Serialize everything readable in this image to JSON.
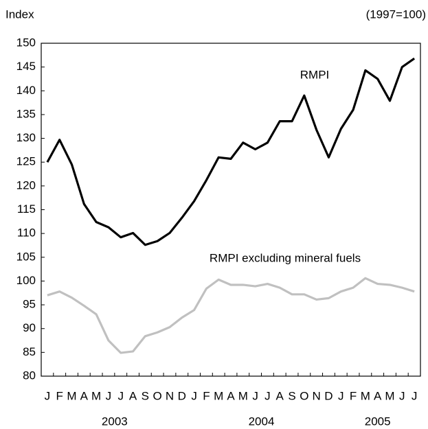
{
  "chart_data": {
    "type": "line",
    "y_label": "Index",
    "note": "(1997=100)",
    "groups": [
      {
        "label": "2003",
        "categories": [
          "J",
          "F",
          "M",
          "A",
          "M",
          "J",
          "J",
          "A",
          "S",
          "O",
          "N",
          "D"
        ]
      },
      {
        "label": "2004",
        "categories": [
          "J",
          "F",
          "M",
          "A",
          "M",
          "J",
          "J",
          "A",
          "S",
          "O",
          "N",
          "D"
        ]
      },
      {
        "label": "2005",
        "categories": [
          "J",
          "F",
          "M",
          "A",
          "M",
          "J",
          "J"
        ]
      }
    ],
    "series": [
      {
        "name": "RMPI",
        "color": "#000000",
        "values": [
          125.0,
          129.7,
          124.5,
          116.2,
          112.4,
          111.3,
          109.2,
          110.1,
          107.6,
          108.4,
          110.1,
          113.3,
          116.8,
          121.2,
          126.0,
          125.7,
          129.1,
          127.7,
          129.1,
          133.6,
          133.6,
          139.0,
          131.8,
          126.0,
          132.0,
          136.0,
          144.3,
          142.5,
          137.9,
          145.0,
          146.8
        ]
      },
      {
        "name": "RMPI excluding mineral fuels",
        "color": "#c0c0c0",
        "values": [
          97.0,
          97.8,
          96.5,
          94.8,
          93.0,
          87.5,
          84.9,
          85.2,
          88.4,
          89.2,
          90.3,
          92.3,
          93.9,
          98.4,
          100.3,
          99.2,
          99.2,
          98.9,
          99.4,
          98.6,
          97.2,
          97.2,
          96.1,
          96.4,
          97.8,
          98.6,
          100.6,
          99.4,
          99.2,
          98.6,
          97.8
        ]
      }
    ],
    "ylim": [
      80,
      150
    ],
    "yticks": [
      80,
      85,
      90,
      95,
      100,
      105,
      110,
      115,
      120,
      125,
      130,
      135,
      140,
      145,
      150
    ]
  }
}
